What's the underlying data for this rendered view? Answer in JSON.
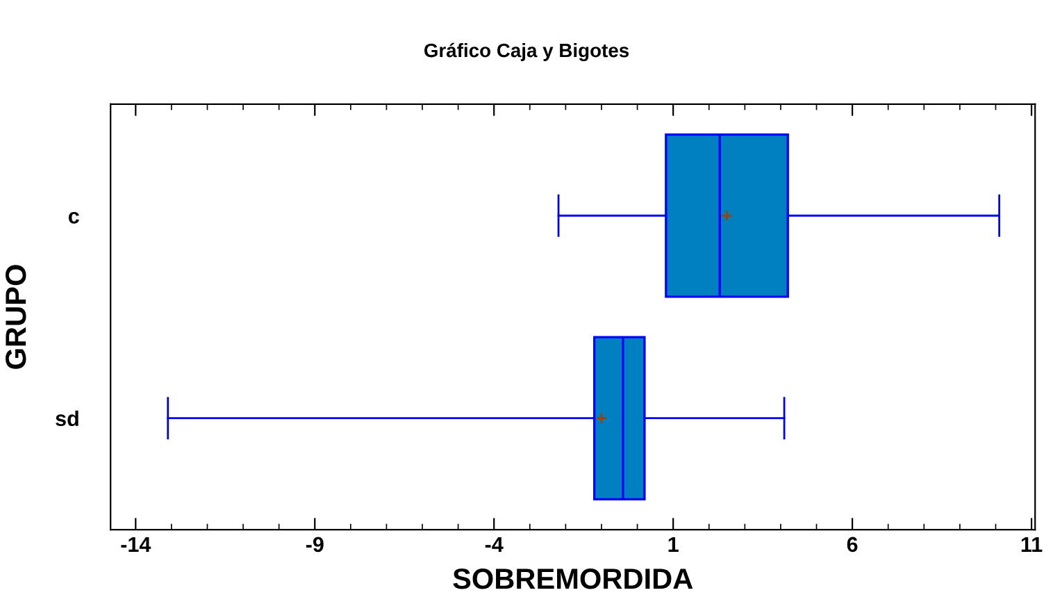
{
  "chart_data": {
    "type": "box",
    "title": "Gráfico Caja y Bigotes",
    "xlabel": "SOBREMORDIDA",
    "ylabel": "GRUPO",
    "orientation": "horizontal",
    "categories": [
      "c",
      "sd"
    ],
    "color": "#0080c0",
    "boxes": [
      {
        "low": -2.2,
        "q1": 0.8,
        "median": 2.3,
        "q3": 4.2,
        "high": 10.1,
        "mean": 2.5
      },
      {
        "low": -13.1,
        "q1": -1.2,
        "median": -0.4,
        "q3": 0.2,
        "high": 4.1,
        "mean": -1.0
      }
    ],
    "xlim": [
      -14.7,
      11.1
    ],
    "xticks": [
      -14,
      -9,
      -4,
      1,
      6,
      11
    ],
    "grid": false,
    "marker": "cross"
  }
}
